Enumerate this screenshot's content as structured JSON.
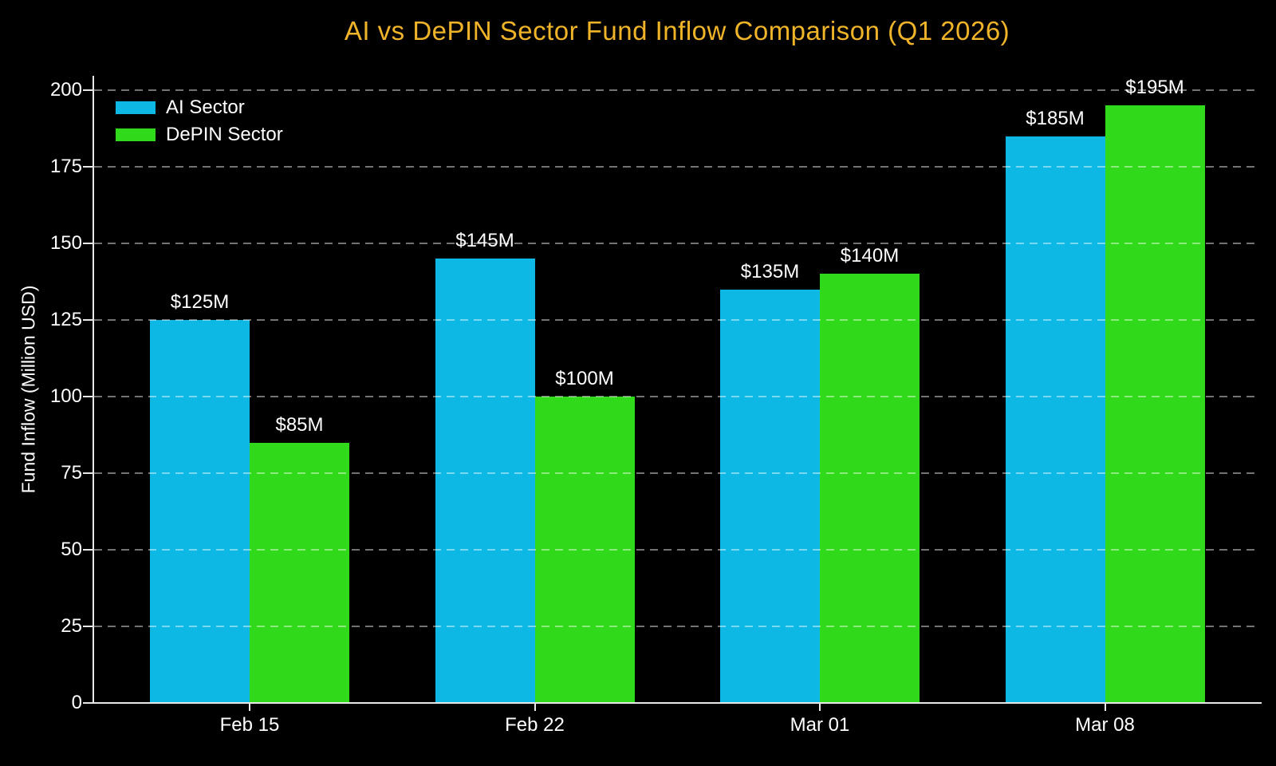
{
  "chart_data": {
    "type": "bar",
    "title": "AI vs DePIN Sector Fund Inflow Comparison (Q1 2026)",
    "ylabel": "Fund Inflow (Million USD)",
    "xlabel": "",
    "categories": [
      "Feb 15",
      "Feb 22",
      "Mar 01",
      "Mar 08"
    ],
    "series": [
      {
        "name": "AI Sector",
        "color": "#0DB8E4",
        "values": [
          125,
          145,
          135,
          185
        ],
        "value_labels": [
          "$125M",
          "$145M",
          "$135M",
          "$185M"
        ]
      },
      {
        "name": "DePIN Sector",
        "color": "#30D91A",
        "values": [
          85,
          100,
          140,
          195
        ],
        "value_labels": [
          "$85M",
          "$100M",
          "$140M",
          "$195M"
        ]
      }
    ],
    "ylim": [
      0,
      200
    ],
    "yticks": [
      0,
      25,
      50,
      75,
      100,
      125,
      150,
      175,
      200
    ],
    "grid": "horizontal-dashed",
    "legend_position": "upper-left",
    "colors": {
      "background": "#000000",
      "title": "#F0B429",
      "text": "#FFFFFF",
      "axis": "#E8E8E8",
      "gridline": "rgba(255,255,255,0.45)"
    }
  }
}
